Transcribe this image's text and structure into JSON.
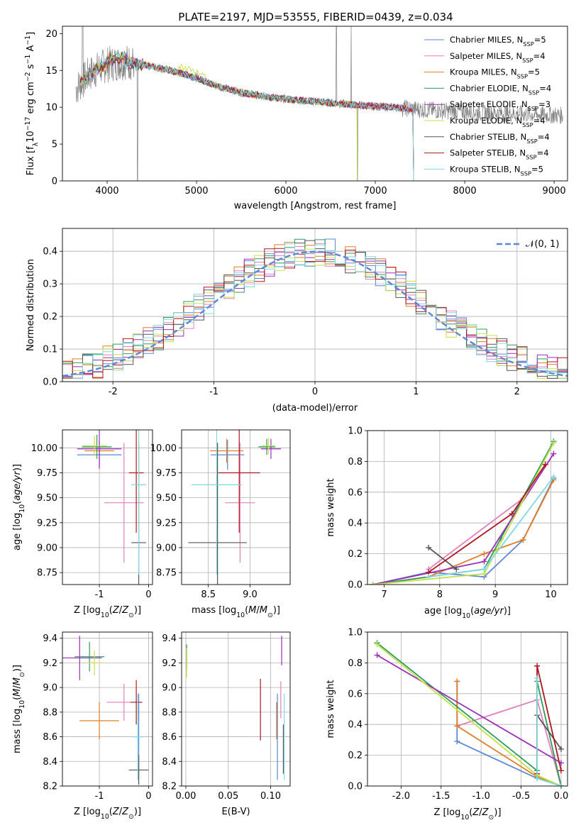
{
  "title": "PLATE=2197, MJD=53555, FIBERID=0439, z=0.034",
  "models": [
    {
      "name": "Chabrier MILES",
      "nssp": "5",
      "color": "#5b87d6"
    },
    {
      "name": "Salpeter MILES",
      "nssp": "4",
      "color": "#e17fbd"
    },
    {
      "name": "Kroupa MILES",
      "nssp": "5",
      "color": "#e07d22"
    },
    {
      "name": "Chabrier ELODIE",
      "nssp": "4",
      "color": "#2b9c5a"
    },
    {
      "name": "Salpeter ELODIE",
      "nssp": "3",
      "color": "#9a2fb8"
    },
    {
      "name": "Kroupa ELODIE",
      "nssp": "4",
      "color": "#c5e04a"
    },
    {
      "name": "Chabrier STELIB",
      "nssp": "4",
      "color": "#555555"
    },
    {
      "name": "Salpeter STELIB",
      "nssp": "4",
      "color": "#b0151f"
    },
    {
      "name": "Kroupa STELIB",
      "nssp": "5",
      "color": "#7fd9df"
    }
  ],
  "chart_data": [
    {
      "type": "line",
      "xlabel": "wavelength [Angstrom, rest frame]",
      "ylabel": "Flux [f_λ 10^-17 erg cm^-2 s^-1 A^-1]",
      "xlim": [
        3500,
        9150
      ],
      "ylim": [
        0,
        21
      ],
      "xticks": [
        4000,
        5000,
        6000,
        7000,
        8000,
        9000
      ],
      "yticks": [
        0,
        5,
        10,
        15,
        20
      ],
      "data_color": "#808080",
      "data_range": [
        3650,
        9100
      ],
      "continuum": [
        [
          3650,
          12.5
        ],
        [
          3800,
          14.5
        ],
        [
          3900,
          15.2
        ],
        [
          4000,
          15.8
        ],
        [
          4100,
          16.0
        ],
        [
          4200,
          16.2
        ],
        [
          4400,
          15.8
        ],
        [
          4600,
          15.3
        ],
        [
          4800,
          14.7
        ],
        [
          5000,
          14.0
        ],
        [
          5200,
          13.0
        ],
        [
          5500,
          12.0
        ],
        [
          5800,
          11.4
        ],
        [
          6000,
          11.1
        ],
        [
          6300,
          10.8
        ],
        [
          6600,
          10.5
        ],
        [
          6900,
          10.2
        ],
        [
          7200,
          10.0
        ],
        [
          7500,
          9.7
        ],
        [
          7800,
          9.5
        ],
        [
          8200,
          9.3
        ],
        [
          8600,
          9.1
        ],
        [
          9100,
          8.9
        ]
      ],
      "model_cutoffs": [
        7430,
        7430,
        7430,
        6800,
        7430,
        6800,
        7430,
        7430,
        7430
      ],
      "legend": "top-right"
    },
    {
      "type": "histogram",
      "xlabel": "(data-model)/error",
      "ylabel": "Normed distribution",
      "xlim": [
        -2.5,
        2.5
      ],
      "ylim": [
        0,
        0.47
      ],
      "xticks": [
        -2,
        -1,
        0,
        1,
        2
      ],
      "yticks": [
        0.0,
        0.1,
        0.2,
        0.3,
        0.4
      ],
      "reference_label": "𝒩(0, 1)",
      "reference_color": "#5b87d6",
      "bin_width": 0.1,
      "legend": "top-right"
    },
    {
      "type": "scatter",
      "xlabel": "Z [log10(Z/Z☉)]",
      "ylabel": "age  [log10(age/yr)]",
      "xlim": [
        -1.75,
        0.08
      ],
      "ylim": [
        8.63,
        10.18
      ],
      "xticks": [
        -1,
        0
      ],
      "yticks": [
        8.75,
        9.0,
        9.25,
        9.5,
        9.75,
        10.0
      ],
      "points": [
        {
          "x": -1.0,
          "y": 9.93,
          "xerr": 0.45,
          "yerr": 0.12
        },
        {
          "x": -0.5,
          "y": 9.45,
          "xerr": 0.4,
          "yerr": 0.6
        },
        {
          "x": -1.0,
          "y": 9.97,
          "xerr": 0.3,
          "yerr": 0.1
        },
        {
          "x": -1.05,
          "y": 10.01,
          "xerr": 0.3,
          "yerr": 0.12
        },
        {
          "x": -1.0,
          "y": 9.99,
          "xerr": 0.45,
          "yerr": 0.2
        },
        {
          "x": -1.1,
          "y": 10.02,
          "xerr": 0.25,
          "yerr": 0.1
        },
        {
          "x": -0.2,
          "y": 9.05,
          "xerr": 0.15,
          "yerr": 1.0
        },
        {
          "x": -0.25,
          "y": 9.75,
          "xerr": 0.15,
          "yerr": 0.6
        },
        {
          "x": -0.2,
          "y": 9.63,
          "xerr": 0.15,
          "yerr": 0.9
        }
      ]
    },
    {
      "type": "scatter",
      "xlabel": "mass [log10(M/M☉)]",
      "ylabel": "",
      "xlim": [
        8.18,
        9.48
      ],
      "ylim": [
        8.63,
        10.18
      ],
      "xticks": [
        8.5,
        9.0
      ],
      "yticks": [
        8.75,
        9.0,
        9.25,
        9.5,
        9.75,
        10.0
      ],
      "points": [
        {
          "x": 8.73,
          "y": 9.93,
          "xerr": 0.2,
          "yerr": 0.15
        },
        {
          "x": 8.88,
          "y": 9.45,
          "xerr": 0.18,
          "yerr": 0.6
        },
        {
          "x": 8.72,
          "y": 9.97,
          "xerr": 0.2,
          "yerr": 0.12
        },
        {
          "x": 9.2,
          "y": 10.01,
          "xerr": 0.1,
          "yerr": 0.08
        },
        {
          "x": 9.25,
          "y": 9.99,
          "xerr": 0.12,
          "yerr": 0.1
        },
        {
          "x": 9.22,
          "y": 10.02,
          "xerr": 0.08,
          "yerr": 0.08
        },
        {
          "x": 8.61,
          "y": 9.05,
          "xerr": 0.35,
          "yerr": 1.0
        },
        {
          "x": 8.87,
          "y": 9.75,
          "xerr": 0.25,
          "yerr": 0.6
        },
        {
          "x": 8.6,
          "y": 9.63,
          "xerr": 0.3,
          "yerr": 0.9
        }
      ]
    },
    {
      "type": "line",
      "xlabel": "age  [log10(age/yr)]",
      "ylabel": "mass weight",
      "xlim": [
        6.7,
        10.3
      ],
      "ylim": [
        0,
        1.0
      ],
      "xticks": [
        7,
        8,
        9,
        10
      ],
      "yticks": [
        0.0,
        0.2,
        0.4,
        0.6,
        0.8,
        1.0
      ],
      "series": [
        {
          "x": [
            6.8,
            7.8,
            8.8,
            9.5,
            10.05
          ],
          "y": [
            0.0,
            0.08,
            0.05,
            0.29,
            0.69
          ]
        },
        {
          "x": [
            7.8,
            9.5
          ],
          "y": [
            0.1,
            0.56
          ]
        },
        {
          "x": [
            6.8,
            7.8,
            8.8,
            9.5,
            10.05
          ],
          "y": [
            0.0,
            0.05,
            0.2,
            0.29,
            0.68
          ]
        },
        {
          "x": [
            6.8,
            8.8,
            9.1,
            10.05
          ],
          "y": [
            0.0,
            0.1,
            0.3,
            0.93
          ]
        },
        {
          "x": [
            6.8,
            8.8,
            10.05
          ],
          "y": [
            0.0,
            0.15,
            0.85
          ]
        },
        {
          "x": [
            6.8,
            8.8,
            10.05
          ],
          "y": [
            0.0,
            0.07,
            0.92
          ]
        },
        {
          "x": [
            7.8,
            8.3
          ],
          "y": [
            0.24,
            0.1
          ]
        },
        {
          "x": [
            7.8,
            9.3,
            9.9
          ],
          "y": [
            0.08,
            0.46,
            0.78
          ]
        },
        {
          "x": [
            7.8,
            8.8,
            10.05
          ],
          "y": [
            0.05,
            0.1,
            0.7
          ]
        }
      ]
    },
    {
      "type": "scatter",
      "xlabel": "Z [log10(Z/Z☉)]",
      "ylabel": "mass [log10(M/M☉)]",
      "xlim": [
        -1.75,
        0.08
      ],
      "ylim": [
        8.2,
        9.45
      ],
      "xticks": [
        -1,
        0
      ],
      "yticks": [
        8.2,
        8.4,
        8.6,
        8.8,
        9.0,
        9.2,
        9.4
      ],
      "points": [
        {
          "x": -0.2,
          "y": 8.6,
          "xerr": 0.1,
          "yerr": 0.35
        },
        {
          "x": -0.5,
          "y": 8.88,
          "xerr": 0.35,
          "yerr": 0.15
        },
        {
          "x": -1.0,
          "y": 8.73,
          "xerr": 0.4,
          "yerr": 0.15
        },
        {
          "x": -1.2,
          "y": 9.25,
          "xerr": 0.3,
          "yerr": 0.12
        },
        {
          "x": -1.4,
          "y": 9.24,
          "xerr": 0.45,
          "yerr": 0.18
        },
        {
          "x": -1.1,
          "y": 9.2,
          "xerr": 0.15,
          "yerr": 0.1
        },
        {
          "x": -0.2,
          "y": 8.33,
          "xerr": 0.2,
          "yerr": 0.12
        },
        {
          "x": -0.25,
          "y": 8.88,
          "xerr": 0.12,
          "yerr": 0.18
        },
        {
          "x": -0.22,
          "y": 8.6,
          "xerr": 0.12,
          "yerr": 0.35
        }
      ]
    },
    {
      "type": "scatter",
      "xlabel": "E(B-V)",
      "ylabel": "",
      "xlim": [
        -0.005,
        0.123
      ],
      "ylim": [
        8.2,
        9.45
      ],
      "xticks": [
        0.0,
        0.05,
        0.1
      ],
      "yticks": [
        8.2,
        8.4,
        8.6,
        8.8,
        9.0,
        9.2,
        9.4
      ],
      "points": [
        {
          "x": 0.108,
          "y": 8.6,
          "xerr": 0,
          "yerr": 0.35
        },
        {
          "x": 0.112,
          "y": 8.9,
          "xerr": 0,
          "yerr": 0.15
        },
        {
          "x": 0.107,
          "y": 8.73,
          "xerr": 0,
          "yerr": 0.15
        },
        {
          "x": 0.001,
          "y": 9.25,
          "xerr": 0,
          "yerr": 0.1
        },
        {
          "x": 0.113,
          "y": 9.3,
          "xerr": 0,
          "yerr": 0.12
        },
        {
          "x": 0.001,
          "y": 9.2,
          "xerr": 0,
          "yerr": 0.12
        },
        {
          "x": 0.115,
          "y": 8.5,
          "xerr": 0,
          "yerr": 0.2
        },
        {
          "x": 0.088,
          "y": 8.82,
          "xerr": 0,
          "yerr": 0.25
        },
        {
          "x": 0.116,
          "y": 8.6,
          "xerr": 0,
          "yerr": 0.35
        }
      ]
    },
    {
      "type": "line",
      "xlabel": "Z [log10(Z/Z☉)]",
      "ylabel": "mass weight",
      "xlim": [
        -2.42,
        0.08
      ],
      "ylim": [
        0,
        1.0
      ],
      "xticks": [
        -2.0,
        -1.5,
        -1.0,
        -0.5,
        0.0
      ],
      "yticks": [
        0.0,
        0.2,
        0.4,
        0.6,
        0.8,
        1.0
      ],
      "series": [
        {
          "x": [
            -1.3,
            -1.3,
            -0.3,
            0.0
          ],
          "y": [
            0.68,
            0.29,
            0.05,
            0.0
          ]
        },
        {
          "x": [
            -1.3,
            -0.3,
            0.0
          ],
          "y": [
            0.39,
            0.56,
            0.0
          ]
        },
        {
          "x": [
            -1.3,
            -1.3,
            -0.3,
            0.0
          ],
          "y": [
            0.68,
            0.39,
            0.06,
            0.0
          ]
        },
        {
          "x": [
            -2.3,
            -0.3,
            -0.3,
            0.0
          ],
          "y": [
            0.93,
            0.1,
            0.68,
            0.0
          ]
        },
        {
          "x": [
            -2.3,
            0.0
          ],
          "y": [
            0.85,
            0.15
          ]
        },
        {
          "x": [
            -2.3,
            -0.3,
            0.0
          ],
          "y": [
            0.92,
            0.07,
            0.0
          ]
        },
        {
          "x": [
            -0.3,
            0.0
          ],
          "y": [
            0.46,
            0.24
          ]
        },
        {
          "x": [
            -0.3,
            -0.3,
            0.0
          ],
          "y": [
            0.08,
            0.78,
            0.1
          ]
        },
        {
          "x": [
            -0.3,
            -0.3,
            0.0
          ],
          "y": [
            0.7,
            0.05,
            0.0
          ]
        }
      ]
    }
  ]
}
